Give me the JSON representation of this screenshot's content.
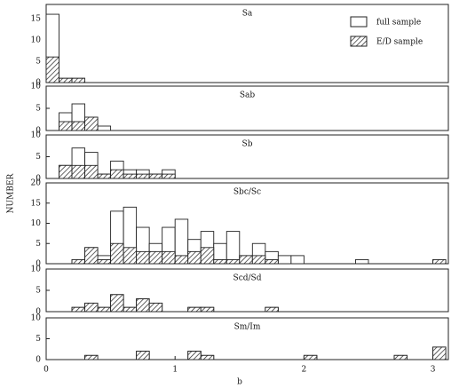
{
  "chart_data": [
    {
      "type": "histogram",
      "title": "Sa",
      "ylabel": "NUMBER",
      "legend": "upper right",
      "bins": [
        0,
        0.1,
        0.2,
        0.3,
        0.4,
        0.5,
        0.6,
        0.7,
        0.8,
        0.9,
        1,
        1.1,
        1.2,
        1.3,
        1.4,
        1.5,
        1.6,
        1.7,
        1.8,
        1.9,
        2,
        2.1,
        2.2,
        2.3,
        2.4,
        2.5,
        2.6,
        2.7,
        2.8,
        2.9,
        3,
        3.1
      ],
      "series": [
        {
          "name": "full sample",
          "color": "#ffffff",
          "values": [
            16,
            1,
            1,
            0,
            0,
            0,
            0,
            0,
            0,
            0,
            0,
            0,
            0,
            0,
            0,
            0,
            0,
            0,
            0,
            0,
            0,
            0,
            0,
            0,
            0,
            0,
            0,
            0,
            0,
            0,
            0
          ]
        },
        {
          "name": "E/D sample",
          "color": "#222222",
          "pattern": "hatch",
          "values": [
            6,
            1,
            1,
            0,
            0,
            0,
            0,
            0,
            0,
            0,
            0,
            0,
            0,
            0,
            0,
            0,
            0,
            0,
            0,
            0,
            0,
            0,
            0,
            0,
            0,
            0,
            0,
            0,
            0,
            0,
            0
          ]
        }
      ],
      "xlim": [
        0,
        3.12
      ],
      "ylim": [
        0,
        18.3
      ],
      "yticks": [
        0,
        5,
        10,
        15
      ]
    },
    {
      "type": "histogram",
      "title": "Sab",
      "bins": [
        0,
        0.1,
        0.2,
        0.3,
        0.4,
        0.5,
        0.6,
        0.7,
        0.8,
        0.9,
        1,
        1.1,
        1.2,
        1.3,
        1.4,
        1.5,
        1.6,
        1.7,
        1.8,
        1.9,
        2,
        2.1,
        2.2,
        2.3,
        2.4,
        2.5,
        2.6,
        2.7,
        2.8,
        2.9,
        3,
        3.1
      ],
      "series": [
        {
          "name": "full sample",
          "color": "#ffffff",
          "values": [
            0,
            4,
            6,
            3,
            1,
            0,
            0,
            0,
            0,
            0,
            0,
            0,
            0,
            0,
            0,
            0,
            0,
            0,
            0,
            0,
            0,
            0,
            0,
            0,
            0,
            0,
            0,
            0,
            0,
            0,
            0
          ]
        },
        {
          "name": "E/D sample",
          "color": "#222222",
          "pattern": "hatch",
          "values": [
            0,
            2,
            2,
            3,
            0,
            0,
            0,
            0,
            0,
            0,
            0,
            0,
            0,
            0,
            0,
            0,
            0,
            0,
            0,
            0,
            0,
            0,
            0,
            0,
            0,
            0,
            0,
            0,
            0,
            0,
            0
          ]
        }
      ],
      "xlim": [
        0,
        3.12
      ],
      "ylim": [
        0,
        10
      ],
      "yticks": [
        0,
        5,
        10
      ]
    },
    {
      "type": "histogram",
      "title": "Sb",
      "bins": [
        0,
        0.1,
        0.2,
        0.3,
        0.4,
        0.5,
        0.6,
        0.7,
        0.8,
        0.9,
        1,
        1.1,
        1.2,
        1.3,
        1.4,
        1.5,
        1.6,
        1.7,
        1.8,
        1.9,
        2,
        2.1,
        2.2,
        2.3,
        2.4,
        2.5,
        2.6,
        2.7,
        2.8,
        2.9,
        3,
        3.1
      ],
      "series": [
        {
          "name": "full sample",
          "color": "#ffffff",
          "values": [
            0,
            3,
            7,
            6,
            1,
            4,
            2,
            2,
            1,
            2,
            0,
            0,
            0,
            0,
            0,
            0,
            0,
            0,
            0,
            0,
            0,
            0,
            0,
            0,
            0,
            0,
            0,
            0,
            0,
            0,
            0
          ]
        },
        {
          "name": "E/D sample",
          "color": "#222222",
          "pattern": "hatch",
          "values": [
            0,
            3,
            3,
            3,
            1,
            2,
            1,
            1,
            1,
            1,
            0,
            0,
            0,
            0,
            0,
            0,
            0,
            0,
            0,
            0,
            0,
            0,
            0,
            0,
            0,
            0,
            0,
            0,
            0,
            0,
            0
          ]
        }
      ],
      "xlim": [
        0,
        3.12
      ],
      "ylim": [
        0,
        10
      ],
      "yticks": [
        0,
        5,
        10
      ]
    },
    {
      "type": "histogram",
      "title": "Sbc/Sc",
      "bins": [
        0,
        0.1,
        0.2,
        0.3,
        0.4,
        0.5,
        0.6,
        0.7,
        0.8,
        0.9,
        1,
        1.1,
        1.2,
        1.3,
        1.4,
        1.5,
        1.6,
        1.7,
        1.8,
        1.9,
        2,
        2.1,
        2.2,
        2.3,
        2.4,
        2.5,
        2.6,
        2.7,
        2.8,
        2.9,
        3,
        3.1
      ],
      "series": [
        {
          "name": "full sample",
          "color": "#ffffff",
          "values": [
            0,
            0,
            1,
            4,
            2,
            13,
            14,
            9,
            5,
            9,
            11,
            6,
            8,
            5,
            8,
            2,
            5,
            3,
            2,
            2,
            0,
            0,
            0,
            0,
            1,
            0,
            0,
            0,
            0,
            0,
            1
          ]
        },
        {
          "name": "E/D sample",
          "color": "#222222",
          "pattern": "hatch",
          "values": [
            0,
            0,
            1,
            4,
            1,
            5,
            4,
            3,
            3,
            3,
            2,
            3,
            4,
            1,
            1,
            2,
            2,
            1,
            0,
            0,
            0,
            0,
            0,
            0,
            0,
            0,
            0,
            0,
            0,
            0,
            1
          ]
        }
      ],
      "xlim": [
        0,
        3.12
      ],
      "ylim": [
        0,
        20
      ],
      "yticks": [
        0,
        5,
        10,
        15,
        20
      ]
    },
    {
      "type": "histogram",
      "title": "Scd/Sd",
      "bins": [
        0,
        0.1,
        0.2,
        0.3,
        0.4,
        0.5,
        0.6,
        0.7,
        0.8,
        0.9,
        1,
        1.1,
        1.2,
        1.3,
        1.4,
        1.5,
        1.6,
        1.7,
        1.8,
        1.9,
        2,
        2.1,
        2.2,
        2.3,
        2.4,
        2.5,
        2.6,
        2.7,
        2.8,
        2.9,
        3,
        3.1
      ],
      "series": [
        {
          "name": "full sample",
          "color": "#ffffff",
          "values": [
            0,
            0,
            1,
            2,
            1,
            4,
            1,
            3,
            2,
            0,
            0,
            1,
            1,
            0,
            0,
            0,
            0,
            1,
            0,
            0,
            0,
            0,
            0,
            0,
            0,
            0,
            0,
            0,
            0,
            0,
            0
          ]
        },
        {
          "name": "E/D sample",
          "color": "#222222",
          "pattern": "hatch",
          "values": [
            0,
            0,
            1,
            2,
            1,
            4,
            1,
            3,
            2,
            0,
            0,
            1,
            1,
            0,
            0,
            0,
            0,
            1,
            0,
            0,
            0,
            0,
            0,
            0,
            0,
            0,
            0,
            0,
            0,
            0,
            0
          ]
        }
      ],
      "xlim": [
        0,
        3.12
      ],
      "ylim": [
        0,
        10
      ],
      "yticks": [
        0,
        5,
        10
      ]
    },
    {
      "type": "histogram",
      "title": "Sm/Im",
      "xlabel": "b",
      "bins": [
        0,
        0.1,
        0.2,
        0.3,
        0.4,
        0.5,
        0.6,
        0.7,
        0.8,
        0.9,
        1,
        1.1,
        1.2,
        1.3,
        1.4,
        1.5,
        1.6,
        1.7,
        1.8,
        1.9,
        2,
        2.1,
        2.2,
        2.3,
        2.4,
        2.5,
        2.6,
        2.7,
        2.8,
        2.9,
        3,
        3.1
      ],
      "series": [
        {
          "name": "full sample",
          "color": "#ffffff",
          "values": [
            0,
            0,
            0,
            1,
            0,
            0,
            0,
            2,
            0,
            0,
            0,
            2,
            1,
            0,
            0,
            0,
            0,
            0,
            0,
            0,
            1,
            0,
            0,
            0,
            0,
            0,
            0,
            1,
            0,
            0,
            3
          ]
        },
        {
          "name": "E/D sample",
          "color": "#222222",
          "pattern": "hatch",
          "values": [
            0,
            0,
            0,
            1,
            0,
            0,
            0,
            2,
            0,
            0,
            0,
            2,
            1,
            0,
            0,
            0,
            0,
            0,
            0,
            0,
            1,
            0,
            0,
            0,
            0,
            0,
            0,
            1,
            0,
            0,
            3
          ]
        }
      ],
      "xlim": [
        0,
        3.12
      ],
      "ylim": [
        0,
        10
      ],
      "yticks": [
        0,
        5,
        10
      ],
      "xticks": [
        0,
        1,
        2,
        3
      ]
    }
  ]
}
